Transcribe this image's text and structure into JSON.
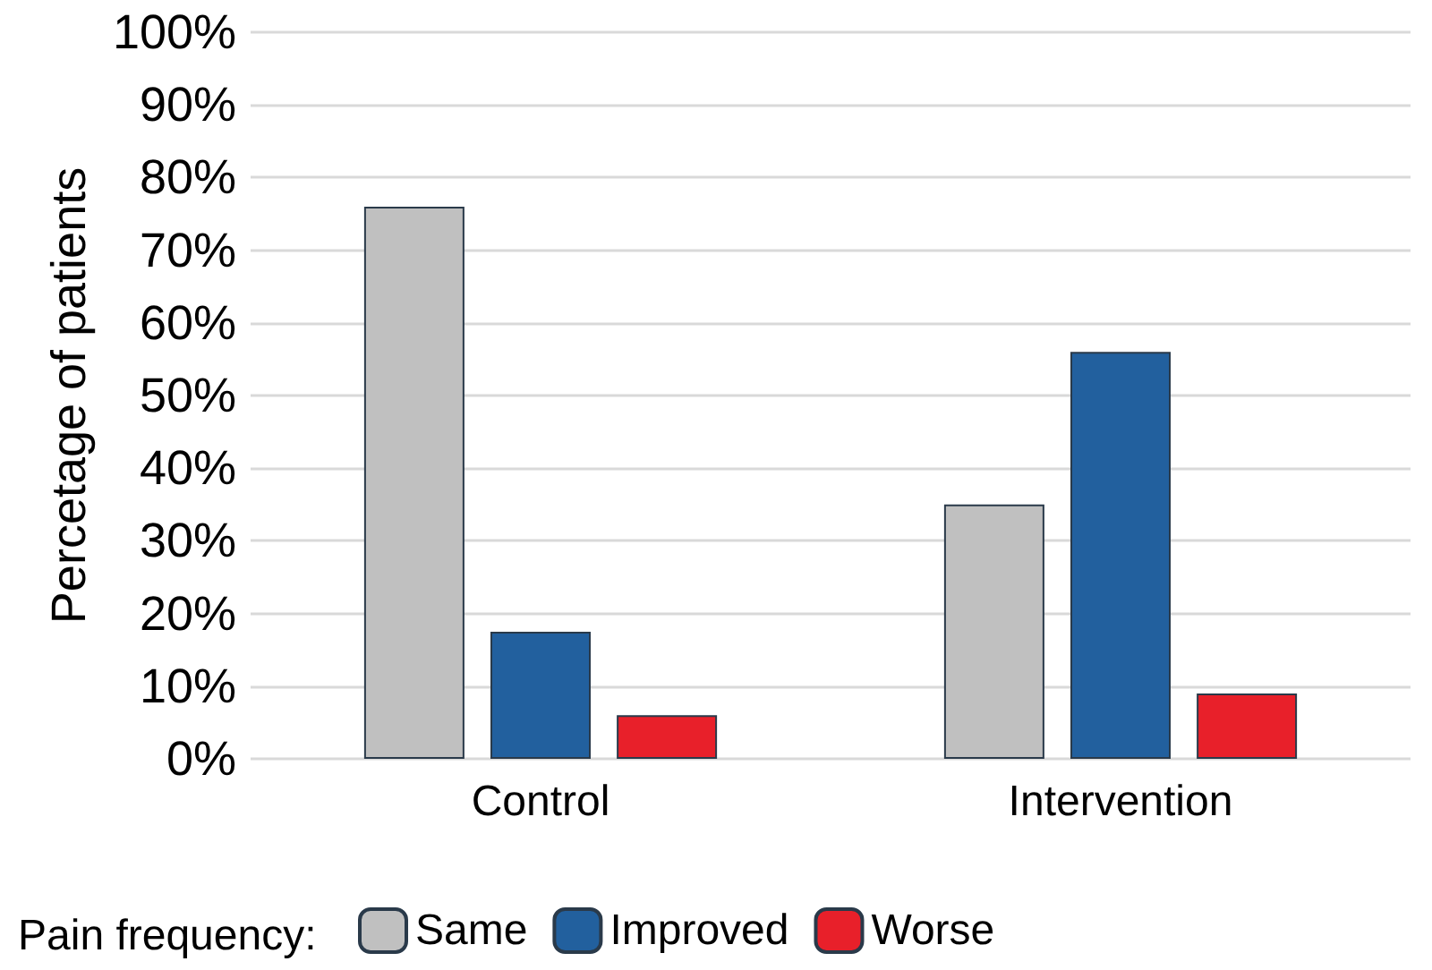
{
  "chart_data": {
    "type": "bar",
    "ylabel": "Percetage of patients",
    "legend_title": "Pain frequency:",
    "categories": [
      "Control",
      "Intervention"
    ],
    "series": [
      {
        "name": "Same",
        "color": "#c0c0c0",
        "values": [
          76,
          35
        ]
      },
      {
        "name": "Improved",
        "color": "#22609e",
        "values": [
          17.5,
          56
        ]
      },
      {
        "name": "Worse",
        "color": "#e8202a",
        "values": [
          6,
          9
        ]
      }
    ],
    "ylim": [
      0,
      100
    ],
    "yticks": [
      {
        "value": 0,
        "label": "0%"
      },
      {
        "value": 10,
        "label": "10%"
      },
      {
        "value": 20,
        "label": "20%"
      },
      {
        "value": 30,
        "label": "30%"
      },
      {
        "value": 40,
        "label": "40%"
      },
      {
        "value": 50,
        "label": "50%"
      },
      {
        "value": 60,
        "label": "60%"
      },
      {
        "value": 70,
        "label": "70%"
      },
      {
        "value": 80,
        "label": "80%"
      },
      {
        "value": 90,
        "label": "90%"
      },
      {
        "value": 100,
        "label": "100%"
      }
    ],
    "grid": "y",
    "legend": "bottom"
  }
}
